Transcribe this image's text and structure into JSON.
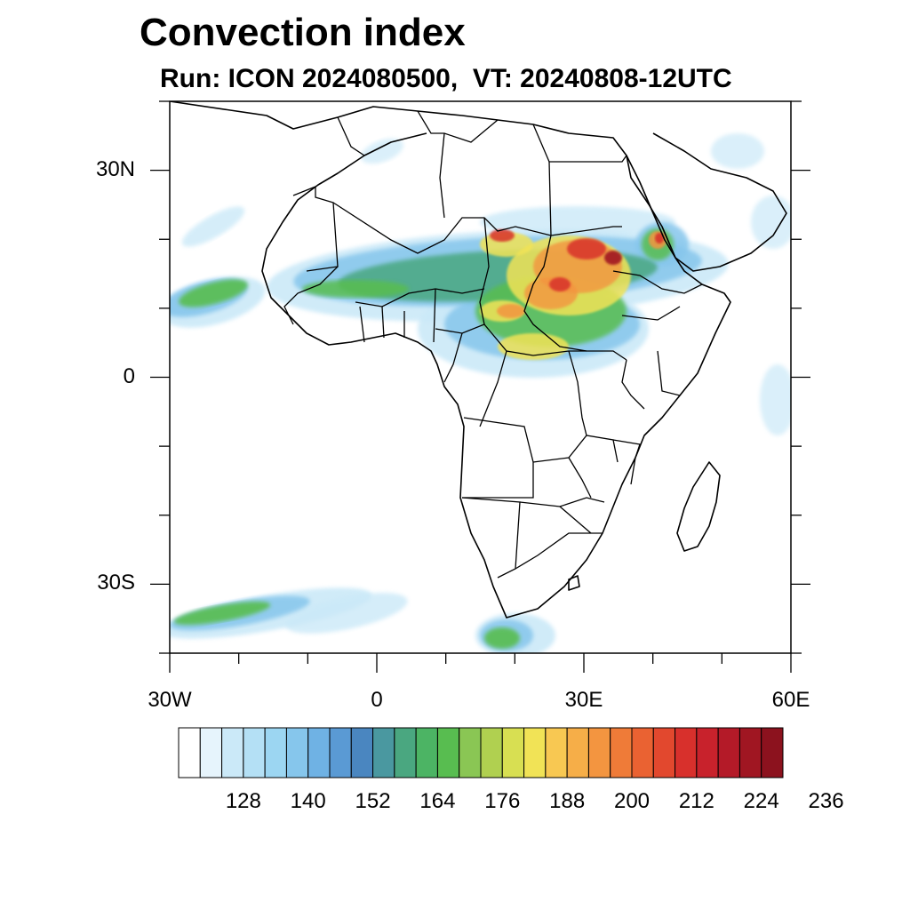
{
  "title": "Convection index",
  "subtitle": "Run: ICON 2024080500,  VT: 20240808-12UTC",
  "axes": {
    "lat_labels": [
      {
        "lat": 30,
        "text": "30N"
      },
      {
        "lat": 0,
        "text": "0"
      },
      {
        "lat": -30,
        "text": "30S"
      }
    ],
    "lon_labels": [
      {
        "lon": -30,
        "text": "30W"
      },
      {
        "lon": 0,
        "text": "0"
      },
      {
        "lon": 30,
        "text": "30E"
      },
      {
        "lon": 60,
        "text": "60E"
      }
    ],
    "lon_range": [
      -30,
      60
    ],
    "lat_range": [
      -40,
      40
    ]
  },
  "colorbar": {
    "colors": [
      "#ffffff",
      "#e6f4fc",
      "#cbe9f8",
      "#b4e0f5",
      "#9cd6f2",
      "#86c6ec",
      "#6fb2e4",
      "#5a9ad4",
      "#4a86c0",
      "#4a98a0",
      "#4aa780",
      "#4cb464",
      "#58bd50",
      "#8ac654",
      "#b0d050",
      "#d8df52",
      "#f1e356",
      "#f8c852",
      "#f6ae48",
      "#f39540",
      "#ef7b38",
      "#ea6232",
      "#e2482e",
      "#d8302c",
      "#c8222c",
      "#b41a28",
      "#a01622",
      "#8c121e"
    ],
    "labels": [
      "128",
      "140",
      "152",
      "164",
      "176",
      "188",
      "200",
      "212",
      "224",
      "236"
    ]
  },
  "field_colors": {
    "light": "#cbe9f8",
    "sky": "#86c6ec",
    "blue": "#5a9ad4",
    "teal": "#4aa780",
    "green": "#58bd50",
    "yellow": "#f1e356",
    "orange": "#f39540",
    "red": "#d8302c",
    "darkred": "#a01622"
  }
}
